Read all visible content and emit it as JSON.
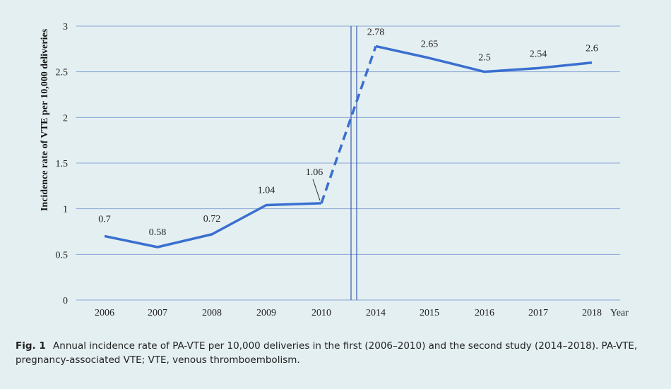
{
  "chart_data": {
    "type": "line",
    "ylabel": "Incidence rate of VTE per 10,000 deliveries",
    "xlabel": "Year",
    "ylim": [
      0,
      3
    ],
    "yticks": [
      "0",
      "0.5",
      "1",
      "1.5",
      "2",
      "2.5",
      "3"
    ],
    "categories": [
      "2006",
      "2007",
      "2008",
      "2009",
      "2010",
      "2014",
      "2015",
      "2016",
      "2017",
      "2018"
    ],
    "values": [
      0.7,
      0.58,
      0.72,
      1.04,
      1.06,
      2.78,
      2.65,
      2.5,
      2.54,
      2.6
    ],
    "labels": [
      "0.7",
      "0.58",
      "0.72",
      "1.04",
      "1.06",
      "2.78",
      "2.65",
      "2.5",
      "2.54",
      "2.6"
    ],
    "study_break_between": [
      "2010",
      "2014"
    ],
    "line_color": "#3a6fd0",
    "gridlines": "horizontal",
    "legend": "none"
  },
  "caption": {
    "label": "Fig. 1",
    "text": "Annual incidence rate of PA-VTE per 10,000 deliveries in the first (2006–2010) and the second study (2014–2018). PA-VTE, pregnancy-associated VTE; VTE, venous thromboembolism."
  }
}
